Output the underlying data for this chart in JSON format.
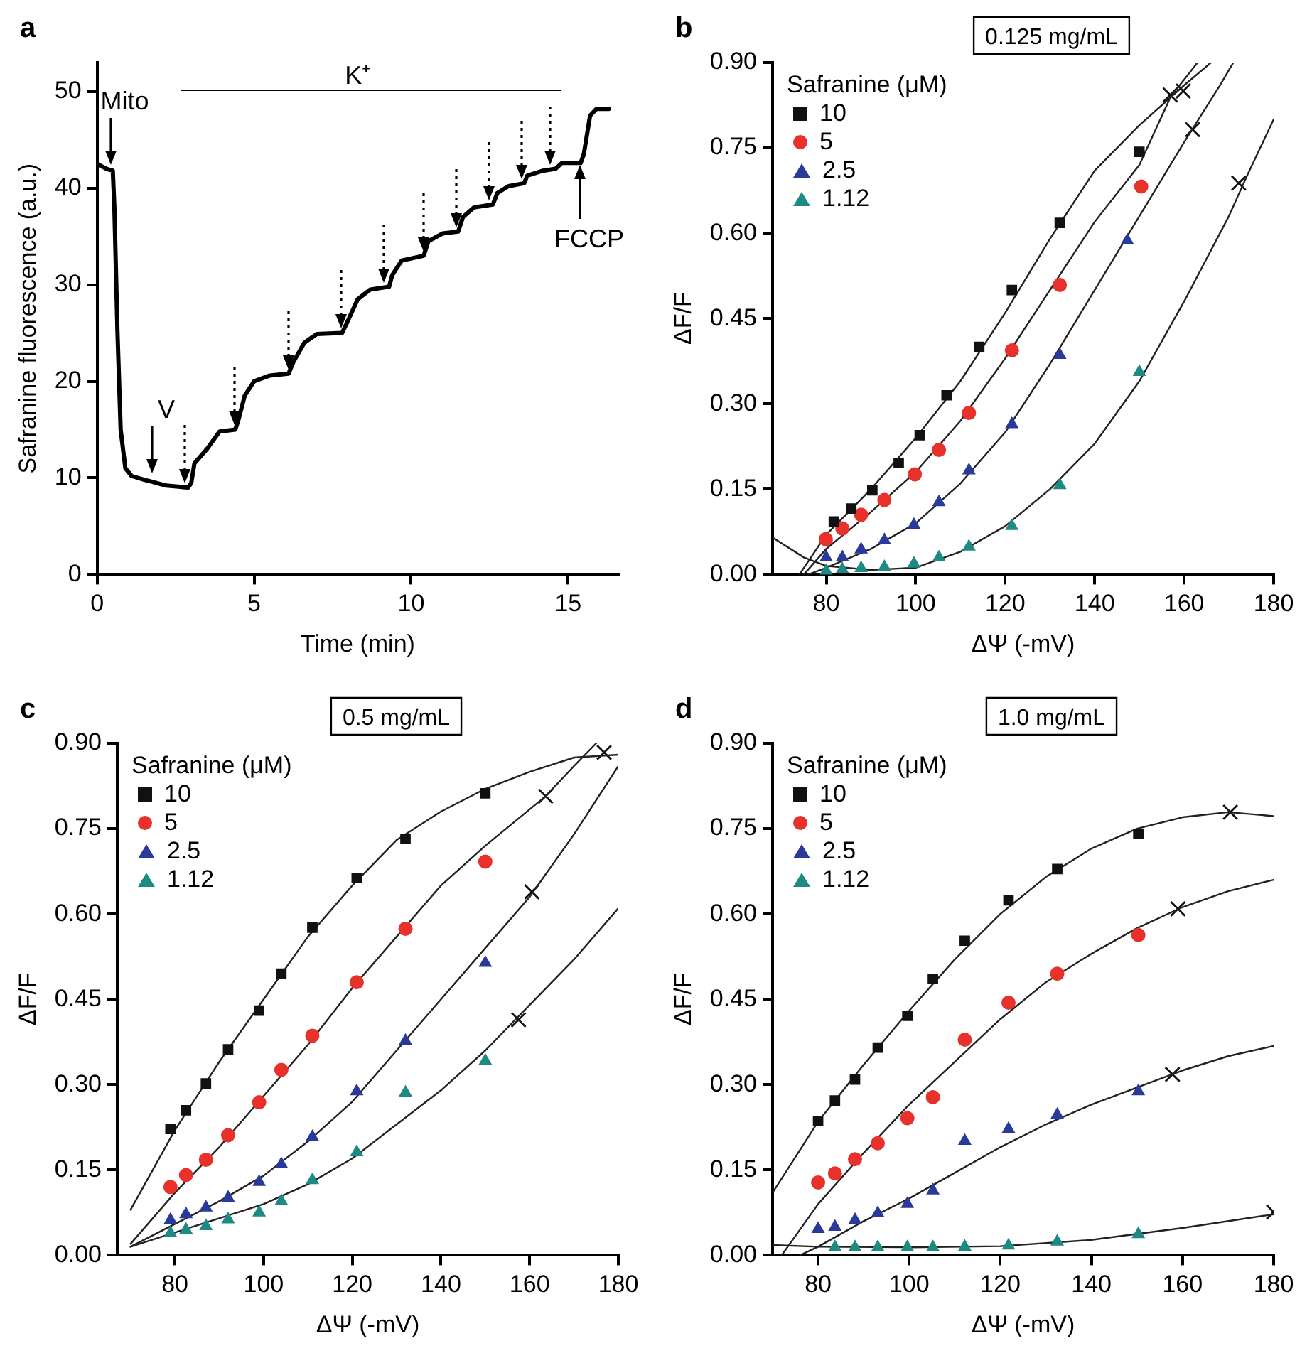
{
  "chart_data": [
    {
      "type": "line",
      "title": "a",
      "xlabel": "Time (min)",
      "ylabel": "Safranine fluorescence (a.u.)",
      "color": "#000000",
      "marker": "none",
      "x": [
        0,
        0.3,
        0.5,
        0.55,
        0.65,
        0.75,
        0.9,
        1.1,
        1.5,
        1.75,
        2.2,
        2.9,
        3.0,
        3.1,
        3.5,
        3.9,
        4.4,
        4.5,
        4.7,
        5.0,
        5.5,
        6.1,
        6.25,
        6.6,
        7.0,
        7.8,
        7.95,
        8.3,
        8.7,
        9.3,
        9.4,
        9.7,
        10.4,
        10.55,
        11.0,
        11.5,
        11.65,
        12.0,
        12.6,
        12.75,
        13.1,
        13.6,
        13.7,
        14.2,
        14.6,
        14.8,
        15.4,
        15.5,
        15.7,
        15.9,
        16.3
      ],
      "values": [
        42.5,
        42,
        41.8,
        38,
        25,
        15,
        11,
        10.2,
        9.8,
        9.6,
        9.2,
        9.0,
        9.5,
        11.5,
        13,
        14.8,
        15,
        16,
        18.5,
        20,
        20.6,
        20.8,
        22,
        24,
        24.9,
        25,
        26,
        28.5,
        29.5,
        29.8,
        31,
        32.5,
        33,
        34.5,
        35.3,
        35.5,
        37,
        38,
        38.3,
        39.5,
        40.2,
        40.5,
        41.3,
        41.8,
        42,
        42.6,
        42.6,
        43.5,
        47.5,
        48.2,
        48.2
      ],
      "xlim": [
        0,
        16.6
      ],
      "xticks": [
        0,
        5,
        10,
        15
      ],
      "ylim": [
        0,
        53
      ],
      "yticks": [
        0,
        10,
        20,
        30,
        40,
        50
      ],
      "annotations": [
        "K⁺",
        {
          "text": "Mito",
          "x": 0.43,
          "y": 42
        },
        {
          "text": "V",
          "x": 1.75,
          "y": 10
        },
        {
          "text": "FCCP",
          "x": 15.4,
          "y": 43
        }
      ],
      "ref_lines": [
        {
          "axis": "x",
          "value": 2.78,
          "line_style": "dotted"
        },
        {
          "axis": "x",
          "value": 4.38,
          "line_style": "dotted"
        },
        {
          "axis": "x",
          "value": 6.08,
          "line_style": "dotted"
        },
        {
          "axis": "x",
          "value": 7.76,
          "line_style": "dotted"
        },
        {
          "axis": "x",
          "value": 9.15,
          "line_style": "dotted"
        },
        {
          "axis": "x",
          "value": 10.4,
          "line_style": "dotted"
        },
        {
          "axis": "x",
          "value": 11.42,
          "line_style": "dotted"
        },
        {
          "axis": "x",
          "value": 12.49,
          "line_style": "dotted"
        },
        {
          "axis": "x",
          "value": 13.52,
          "line_style": "dotted"
        },
        {
          "axis": "x",
          "value": 14.44,
          "line_style": "dotted"
        }
      ]
    },
    {
      "type": "scatter",
      "title": "b",
      "subtitle": "0.125 mg/mL",
      "xlabel": "ΔΨ (-mV)",
      "ylabel": "ΔF/F",
      "legend": "top left",
      "legend_title": "Safranine (μM)",
      "xlim": [
        68,
        180
      ],
      "xticks": [
        80,
        100,
        120,
        140,
        160,
        180
      ],
      "ylim": [
        0,
        0.9
      ],
      "yticks": [
        {
          "value": 0,
          "label": "0.00"
        },
        {
          "value": 0.15,
          "label": "0.15"
        },
        {
          "value": 0.3,
          "label": "0.30"
        },
        {
          "value": 0.45,
          "label": "0.45"
        },
        {
          "value": 0.6,
          "label": "0.60"
        },
        {
          "value": 0.75,
          "label": "0.75"
        },
        {
          "value": 0.9,
          "label": "0.90"
        }
      ],
      "series": [
        {
          "name": "10",
          "color": "#111111",
          "marker": "square",
          "x": [
            81.7,
            85.6,
            90.3,
            96.2,
            100.9,
            106.9,
            114.2,
            121.5,
            132.2,
            150
          ],
          "values": [
            0.093,
            0.116,
            0.148,
            0.196,
            0.245,
            0.315,
            0.4,
            0.5,
            0.618,
            0.743
          ]
        },
        {
          "name": "5",
          "color": "#e8312a",
          "marker": "circle",
          "x": [
            79.9,
            83.6,
            87.8,
            93,
            99.8,
            105.2,
            111.9,
            121.5,
            132.2,
            150.4
          ],
          "values": [
            0.062,
            0.081,
            0.105,
            0.131,
            0.176,
            0.219,
            0.284,
            0.394,
            0.509,
            0.682
          ]
        },
        {
          "name": "2.5",
          "color": "#2a3a9a",
          "marker": "triangle",
          "x": [
            80,
            83.6,
            87.8,
            93,
            99.6,
            105.2,
            111.9,
            121.5,
            132.2,
            147.3
          ],
          "values": [
            0.03,
            0.03,
            0.044,
            0.06,
            0.087,
            0.127,
            0.183,
            0.264,
            0.386,
            0.587
          ]
        },
        {
          "name": "1.12",
          "color": "#1e8a84",
          "marker": "triangle",
          "x": [
            80,
            83.6,
            87.8,
            93,
            99.6,
            105.2,
            111.9,
            121.5,
            132.2,
            150
          ],
          "values": [
            0.006,
            0.009,
            0.011,
            0.013,
            0.019,
            0.03,
            0.049,
            0.085,
            0.157,
            0.356
          ]
        },
        {
          "type": "line",
          "color": "#222222",
          "marker": "none",
          "x": [
            74,
            80,
            90,
            100,
            110,
            120,
            130,
            140,
            150,
            160,
            166
          ],
          "values": [
            0,
            0.07,
            0.15,
            0.24,
            0.34,
            0.46,
            0.59,
            0.71,
            0.79,
            0.86,
            0.9
          ]
        },
        {
          "type": "line",
          "color": "#222222",
          "marker": "none",
          "x": [
            75,
            80,
            90,
            100,
            110,
            120,
            130,
            140,
            150,
            157,
            163
          ],
          "values": [
            0,
            0.045,
            0.11,
            0.18,
            0.27,
            0.38,
            0.5,
            0.62,
            0.72,
            0.84,
            0.9
          ]
        },
        {
          "type": "line",
          "color": "#222222",
          "marker": "none",
          "x": [
            76,
            80,
            90,
            100,
            110,
            120,
            130,
            140,
            150,
            160,
            168,
            171
          ],
          "values": [
            0,
            0.012,
            0.045,
            0.09,
            0.16,
            0.25,
            0.37,
            0.5,
            0.63,
            0.76,
            0.86,
            0.9
          ]
        },
        {
          "type": "line",
          "color": "#222222",
          "marker": "none",
          "x": [
            68,
            75,
            80,
            90,
            100,
            110,
            120,
            130,
            140,
            150,
            160,
            170,
            174,
            180
          ],
          "values": [
            0.065,
            0.03,
            0.015,
            0.008,
            0.012,
            0.04,
            0.085,
            0.15,
            0.23,
            0.34,
            0.48,
            0.63,
            0.7,
            0.8
          ]
        },
        {
          "color": "#111111",
          "marker": "cross",
          "x": [
            156.9,
            159.8,
            161.9,
            172.2
          ],
          "values": [
            0.843,
            0.85,
            0.782,
            0.688
          ]
        }
      ]
    },
    {
      "type": "scatter",
      "title": "c",
      "subtitle": "0.5 mg/mL",
      "xlabel": "ΔΨ (-mV)",
      "ylabel": "ΔF/F",
      "legend": "top left",
      "legend_title": "Safranine (μM)",
      "xlim": [
        67,
        180
      ],
      "xticks": [
        80,
        100,
        120,
        140,
        160,
        180
      ],
      "ylim": [
        0,
        0.9
      ],
      "yticks": [
        {
          "value": 0,
          "label": "0.00"
        },
        {
          "value": 0.15,
          "label": "0.15"
        },
        {
          "value": 0.3,
          "label": "0.30"
        },
        {
          "value": 0.45,
          "label": "0.45"
        },
        {
          "value": 0.6,
          "label": "0.60"
        },
        {
          "value": 0.75,
          "label": "0.75"
        },
        {
          "value": 0.9,
          "label": "0.90"
        }
      ],
      "series": [
        {
          "name": "10",
          "color": "#111111",
          "marker": "square",
          "x": [
            79,
            82.5,
            87,
            92,
            99,
            104,
            111,
            121,
            132,
            150
          ],
          "values": [
            0.222,
            0.255,
            0.302,
            0.362,
            0.43,
            0.495,
            0.576,
            0.663,
            0.732,
            0.812
          ]
        },
        {
          "name": "5",
          "color": "#e8312a",
          "marker": "circle",
          "x": [
            79,
            82.5,
            87,
            92,
            99,
            104,
            111,
            121,
            132,
            150
          ],
          "values": [
            0.12,
            0.141,
            0.168,
            0.211,
            0.269,
            0.326,
            0.386,
            0.48,
            0.574,
            0.692
          ]
        },
        {
          "name": "2.5",
          "color": "#2a3a9a",
          "marker": "triangle",
          "x": [
            79,
            82.5,
            87,
            92,
            99,
            104,
            111,
            121,
            132,
            150
          ],
          "values": [
            0.062,
            0.072,
            0.084,
            0.101,
            0.129,
            0.16,
            0.208,
            0.288,
            0.377,
            0.514
          ]
        },
        {
          "name": "1.12",
          "color": "#1e8a84",
          "marker": "triangle",
          "x": [
            79,
            82.5,
            87,
            92,
            99,
            104,
            111,
            121,
            132,
            150
          ],
          "values": [
            0.039,
            0.045,
            0.051,
            0.063,
            0.075,
            0.095,
            0.132,
            0.181,
            0.286,
            0.342
          ]
        },
        {
          "type": "line",
          "color": "#222222",
          "marker": "none",
          "x": [
            70,
            80,
            90,
            100,
            110,
            120,
            130,
            140,
            150,
            160,
            170,
            180
          ],
          "values": [
            0.08,
            0.22,
            0.34,
            0.45,
            0.56,
            0.65,
            0.73,
            0.78,
            0.82,
            0.85,
            0.875,
            0.88
          ]
        },
        {
          "type": "line",
          "color": "#222222",
          "marker": "none",
          "x": [
            70,
            80,
            90,
            100,
            110,
            120,
            130,
            140,
            150,
            163.6,
            170,
            175
          ],
          "values": [
            0.02,
            0.11,
            0.19,
            0.28,
            0.37,
            0.47,
            0.56,
            0.65,
            0.72,
            0.807,
            0.86,
            0.9
          ]
        },
        {
          "type": "line",
          "color": "#222222",
          "marker": "none",
          "x": [
            70,
            80,
            90,
            100,
            110,
            120,
            130,
            140,
            150,
            160,
            170,
            180
          ],
          "values": [
            0.015,
            0.055,
            0.095,
            0.14,
            0.2,
            0.27,
            0.36,
            0.45,
            0.54,
            0.63,
            0.74,
            0.86
          ]
        },
        {
          "type": "line",
          "color": "#222222",
          "marker": "none",
          "x": [
            70,
            80,
            90,
            100,
            110,
            120,
            130,
            140,
            150,
            160,
            170,
            180
          ],
          "values": [
            0.015,
            0.04,
            0.065,
            0.09,
            0.125,
            0.17,
            0.23,
            0.29,
            0.36,
            0.44,
            0.52,
            0.61
          ]
        },
        {
          "color": "#111111",
          "marker": "cross",
          "x": [
            176.8,
            163.6,
            160.5,
            157.5
          ],
          "values": [
            0.884,
            0.807,
            0.639,
            0.414
          ]
        }
      ]
    },
    {
      "type": "scatter",
      "title": "d",
      "subtitle": "1.0 mg/mL",
      "xlabel": "ΔΨ (-mV)",
      "ylabel": "ΔF/F",
      "legend": "top left",
      "legend_title": "Safranine (μM)",
      "xlim": [
        70,
        180
      ],
      "xticks": [
        80,
        100,
        120,
        140,
        160,
        180
      ],
      "ylim": [
        0,
        0.9
      ],
      "yticks": [
        {
          "value": 0,
          "label": "0.00"
        },
        {
          "value": 0.15,
          "label": "0.15"
        },
        {
          "value": 0.3,
          "label": "0.30"
        },
        {
          "value": 0.45,
          "label": "0.45"
        },
        {
          "value": 0.6,
          "label": "0.60"
        },
        {
          "value": 0.75,
          "label": "0.75"
        },
        {
          "value": 0.9,
          "label": "0.90"
        }
      ],
      "series": [
        {
          "name": "10",
          "color": "#111111",
          "marker": "square",
          "x": [
            80,
            83.7,
            88.1,
            93.1,
            99.6,
            105.2,
            112.2,
            121.8,
            132.5,
            150.3
          ],
          "values": [
            0.236,
            0.272,
            0.309,
            0.365,
            0.421,
            0.486,
            0.553,
            0.624,
            0.679,
            0.741
          ]
        },
        {
          "name": "5",
          "color": "#e8312a",
          "marker": "circle",
          "x": [
            80,
            83.7,
            88.1,
            93.1,
            99.6,
            105.2,
            112.2,
            121.8,
            132.5,
            150.3
          ],
          "values": [
            0.128,
            0.144,
            0.169,
            0.197,
            0.241,
            0.278,
            0.379,
            0.444,
            0.495,
            0.563
          ]
        },
        {
          "name": "2.5",
          "color": "#2a3a9a",
          "marker": "triangle",
          "x": [
            80,
            83.7,
            88.1,
            93.1,
            99.6,
            105.2,
            112.2,
            121.8,
            132.5,
            150.3
          ],
          "values": [
            0.046,
            0.05,
            0.062,
            0.074,
            0.09,
            0.114,
            0.201,
            0.222,
            0.247,
            0.288
          ]
        },
        {
          "name": "1.12",
          "color": "#1e8a84",
          "marker": "triangle",
          "x": [
            83.7,
            88.1,
            93.1,
            99.6,
            105.2,
            112.2,
            121.8,
            132.5,
            150.3
          ],
          "values": [
            0.014,
            0.014,
            0.014,
            0.014,
            0.014,
            0.015,
            0.017,
            0.024,
            0.037
          ]
        },
        {
          "type": "line",
          "color": "#222222",
          "marker": "none",
          "x": [
            70,
            80,
            90,
            100,
            110,
            120,
            130,
            140,
            150,
            160,
            170,
            180
          ],
          "values": [
            0.11,
            0.235,
            0.335,
            0.43,
            0.52,
            0.6,
            0.665,
            0.715,
            0.75,
            0.77,
            0.779,
            0.772
          ]
        },
        {
          "type": "line",
          "color": "#222222",
          "marker": "none",
          "x": [
            72,
            80,
            90,
            100,
            110,
            120,
            130,
            140,
            150,
            160,
            170,
            180
          ],
          "values": [
            0,
            0.09,
            0.18,
            0.265,
            0.34,
            0.415,
            0.48,
            0.53,
            0.575,
            0.612,
            0.64,
            0.66
          ]
        },
        {
          "type": "line",
          "color": "#222222",
          "marker": "none",
          "x": [
            76,
            80,
            90,
            100,
            110,
            120,
            130,
            140,
            150,
            160,
            170,
            180
          ],
          "values": [
            0,
            0.015,
            0.06,
            0.1,
            0.145,
            0.19,
            0.23,
            0.265,
            0.295,
            0.325,
            0.35,
            0.368
          ]
        },
        {
          "type": "line",
          "color": "#222222",
          "marker": "none",
          "x": [
            70,
            80,
            100,
            120,
            140,
            160,
            180
          ],
          "values": [
            0.018,
            0.015,
            0.014,
            0.016,
            0.027,
            0.048,
            0.072
          ]
        },
        {
          "color": "#111111",
          "marker": "cross",
          "x": [
            170.5,
            159,
            157.8,
            180
          ],
          "values": [
            0.779,
            0.609,
            0.318,
            0.076
          ]
        }
      ]
    }
  ]
}
